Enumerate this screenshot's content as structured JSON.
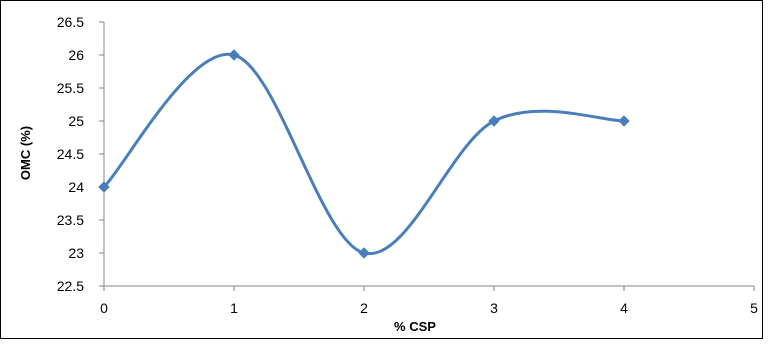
{
  "chart_data": {
    "type": "line",
    "title": "",
    "xlabel": "% CSP",
    "ylabel": "OMC (%)",
    "x": [
      0,
      1,
      2,
      3,
      4
    ],
    "series": [
      {
        "values": [
          24,
          26,
          23,
          25,
          25
        ]
      }
    ],
    "xlim": [
      0,
      5
    ],
    "ylim": [
      22.5,
      26.5
    ],
    "xticks": [
      0,
      1,
      2,
      3,
      4,
      5
    ],
    "yticks": [
      22.5,
      23,
      23.5,
      24,
      24.5,
      25,
      25.5,
      26,
      26.5
    ],
    "smoothed": true,
    "marker": "diamond",
    "grid": false,
    "legend": "none",
    "colors": {
      "series": "#4a7ebb",
      "axis": "#868686"
    }
  }
}
